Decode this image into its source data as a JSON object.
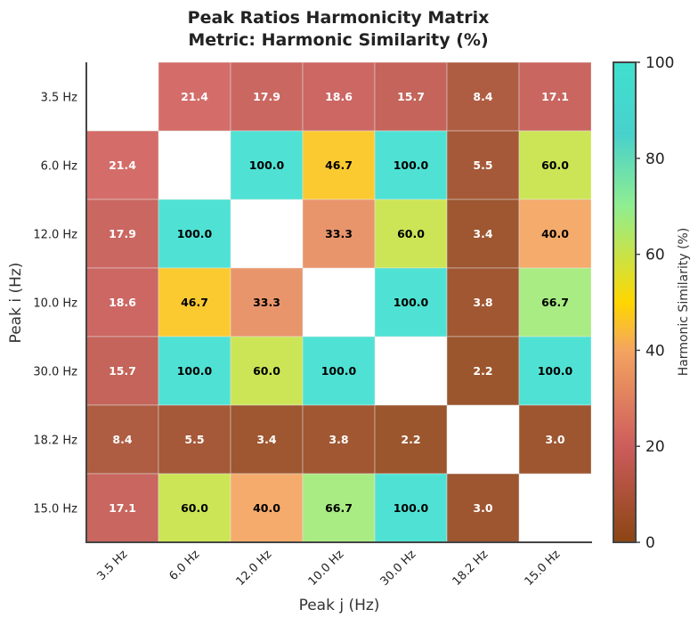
{
  "chart_data": {
    "type": "heatmap",
    "title": "Peak Ratios Harmonicity Matrix",
    "subtitle": "Metric: Harmonic Similarity (%)",
    "xlabel": "Peak j (Hz)",
    "ylabel": "Peak i (Hz)",
    "x_labels": [
      "3.5 Hz",
      "6.0 Hz",
      "12.0 Hz",
      "10.0 Hz",
      "30.0 Hz",
      "18.2 Hz",
      "15.0 Hz"
    ],
    "y_labels": [
      "3.5 Hz",
      "6.0 Hz",
      "12.0 Hz",
      "10.0 Hz",
      "30.0 Hz",
      "18.2 Hz",
      "15.0 Hz"
    ],
    "values": [
      [
        null,
        21.4,
        17.9,
        18.6,
        15.7,
        8.4,
        17.1
      ],
      [
        21.4,
        null,
        100.0,
        46.7,
        100.0,
        5.5,
        60.0
      ],
      [
        17.9,
        100.0,
        null,
        33.3,
        60.0,
        3.4,
        40.0
      ],
      [
        18.6,
        46.7,
        33.3,
        null,
        100.0,
        3.8,
        66.7
      ],
      [
        15.7,
        100.0,
        60.0,
        100.0,
        null,
        2.2,
        100.0
      ],
      [
        8.4,
        5.5,
        3.4,
        3.8,
        2.2,
        null,
        3.0
      ],
      [
        17.1,
        60.0,
        40.0,
        66.7,
        100.0,
        3.0,
        null
      ]
    ],
    "value_range": [
      0,
      100
    ],
    "colorbar": {
      "label": "Harmonic Similarity (%)",
      "ticks": [
        0,
        20,
        40,
        60,
        80,
        100
      ],
      "stops": [
        {
          "value": 0,
          "color": "#8B4513"
        },
        {
          "value": 20,
          "color": "#CD5C5C"
        },
        {
          "value": 40,
          "color": "#F4A460"
        },
        {
          "value": 50,
          "color": "#FFD700"
        },
        {
          "value": 70,
          "color": "#90EE90"
        },
        {
          "value": 85,
          "color": "#48D1CC"
        },
        {
          "value": 100,
          "color": "#40E0D0"
        }
      ]
    },
    "grid": true,
    "diagonal_color": "#ffffff"
  }
}
